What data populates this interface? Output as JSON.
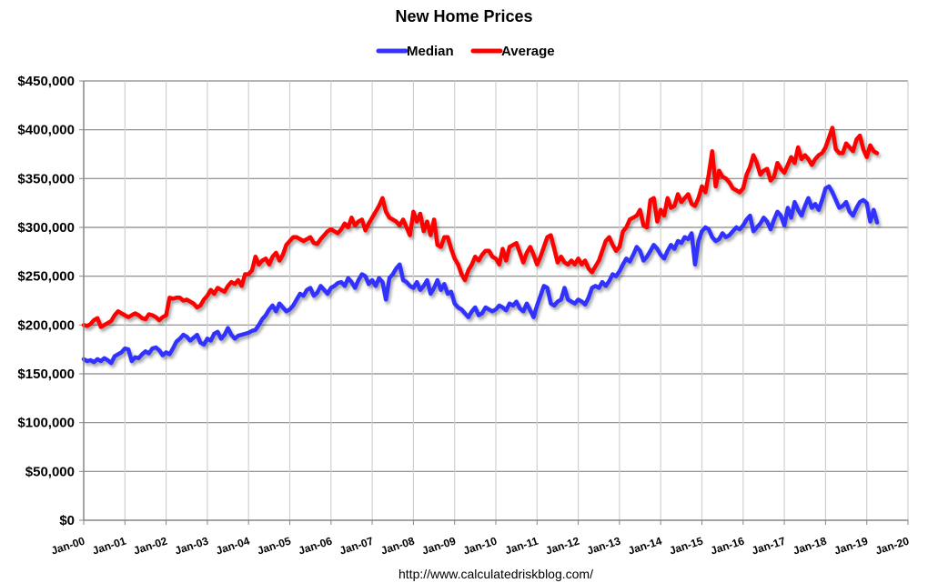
{
  "chart_data": {
    "type": "line",
    "title": "New Home Prices",
    "xlabel": "",
    "ylabel": "",
    "ylim": [
      0,
      450000
    ],
    "xlim": [
      "Jan-00",
      "Jan-20"
    ],
    "grid": true,
    "legend_position": "top",
    "legend": [
      "Median",
      "Average"
    ],
    "source": "http://www.calculatedriskblog.com/",
    "y_ticks": [
      "$0",
      "$50,000",
      "$100,000",
      "$150,000",
      "$200,000",
      "$250,000",
      "$300,000",
      "$350,000",
      "$400,000",
      "$450,000"
    ],
    "y_tick_values": [
      0,
      50000,
      100000,
      150000,
      200000,
      250000,
      300000,
      350000,
      400000,
      450000
    ],
    "x_ticks": [
      "Jan-00",
      "Jan-01",
      "Jan-02",
      "Jan-03",
      "Jan-04",
      "Jan-05",
      "Jan-06",
      "Jan-07",
      "Jan-08",
      "Jan-09",
      "Jan-10",
      "Jan-11",
      "Jan-12",
      "Jan-13",
      "Jan-14",
      "Jan-15",
      "Jan-16",
      "Jan-17",
      "Jan-18",
      "Jan-19",
      "Jan-20"
    ],
    "x_start": "2000-01",
    "x_step": "monthly",
    "series": [
      {
        "name": "Median",
        "color": "#3333ff",
        "values": [
          165,
          163,
          164,
          162,
          165,
          163,
          166,
          164,
          161,
          168,
          170,
          172,
          176,
          175,
          163,
          167,
          166,
          170,
          173,
          171,
          176,
          177,
          174,
          169,
          172,
          170,
          176,
          183,
          186,
          190,
          188,
          184,
          187,
          190,
          182,
          180,
          186,
          184,
          191,
          193,
          186,
          190,
          197,
          190,
          186,
          189,
          190,
          191,
          192,
          194,
          195,
          200,
          206,
          210,
          216,
          220,
          214,
          222,
          218,
          214,
          216,
          220,
          226,
          232,
          230,
          236,
          238,
          230,
          233,
          240,
          236,
          232,
          238,
          240,
          243,
          244,
          240,
          248,
          244,
          238,
          246,
          252,
          250,
          242,
          246,
          240,
          248,
          244,
          226,
          248,
          252,
          258,
          262,
          246,
          244,
          240,
          238,
          244,
          236,
          240,
          246,
          232,
          238,
          246,
          236,
          242,
          232,
          234,
          222,
          218,
          216,
          212,
          208,
          214,
          218,
          210,
          212,
          218,
          216,
          214,
          216,
          220,
          218,
          215,
          222,
          220,
          224,
          217,
          214,
          222,
          215,
          208,
          220,
          230,
          240,
          238,
          222,
          220,
          224,
          226,
          238,
          226,
          224,
          222,
          226,
          224,
          221,
          228,
          238,
          240,
          238,
          244,
          240,
          245,
          252,
          250,
          255,
          262,
          268,
          265,
          272,
          280,
          276,
          266,
          270,
          276,
          282,
          278,
          272,
          268,
          276,
          282,
          278,
          286,
          284,
          290,
          288,
          294,
          262,
          286,
          296,
          300,
          298,
          290,
          286,
          288,
          294,
          290,
          292,
          296,
          300,
          298,
          302,
          308,
          312,
          296,
          300,
          304,
          310,
          306,
          298,
          308,
          316,
          312,
          302,
          320,
          310,
          326,
          318,
          312,
          322,
          330,
          320,
          324,
          318,
          328,
          340,
          342,
          336,
          328,
          320,
          322,
          326,
          316,
          312,
          320,
          326,
          328,
          325,
          306,
          318,
          305
        ]
      },
      {
        "name": "Average",
        "color": "#ff0000",
        "values": [
          200,
          199,
          201,
          205,
          207,
          198,
          200,
          202,
          204,
          210,
          214,
          212,
          210,
          208,
          210,
          212,
          210,
          207,
          206,
          211,
          210,
          208,
          205,
          208,
          210,
          228,
          227,
          228,
          228,
          225,
          226,
          224,
          222,
          218,
          220,
          226,
          230,
          236,
          232,
          238,
          236,
          234,
          240,
          244,
          242,
          246,
          240,
          252,
          252,
          256,
          270,
          262,
          266,
          268,
          262,
          270,
          274,
          266,
          272,
          282,
          286,
          290,
          290,
          288,
          286,
          288,
          290,
          284,
          283,
          288,
          292,
          296,
          298,
          296,
          294,
          298,
          304,
          300,
          310,
          302,
          306,
          308,
          297,
          304,
          310,
          316,
          322,
          330,
          316,
          310,
          308,
          306,
          302,
          308,
          300,
          292,
          316,
          306,
          314,
          296,
          306,
          292,
          308,
          282,
          280,
          290,
          290,
          278,
          268,
          262,
          252,
          246,
          256,
          262,
          270,
          266,
          272,
          276,
          276,
          270,
          268,
          262,
          278,
          266,
          280,
          282,
          284,
          274,
          264,
          274,
          280,
          272,
          262,
          270,
          280,
          290,
          292,
          278,
          264,
          270,
          264,
          262,
          266,
          262,
          268,
          262,
          266,
          258,
          254,
          260,
          266,
          276,
          286,
          290,
          282,
          276,
          280,
          296,
          300,
          308,
          310,
          312,
          318,
          302,
          300,
          328,
          330,
          306,
          318,
          312,
          330,
          320,
          322,
          334,
          326,
          330,
          334,
          324,
          322,
          330,
          342,
          336,
          354,
          378,
          342,
          358,
          352,
          350,
          346,
          340,
          338,
          336,
          340,
          354,
          362,
          374,
          366,
          354,
          358,
          360,
          348,
          352,
          366,
          360,
          356,
          364,
          372,
          366,
          382,
          370,
          374,
          370,
          364,
          370,
          374,
          376,
          382,
          392,
          402,
          380,
          376,
          376,
          386,
          382,
          378,
          390,
          394,
          380,
          372,
          384,
          378,
          376
        ]
      }
    ]
  }
}
